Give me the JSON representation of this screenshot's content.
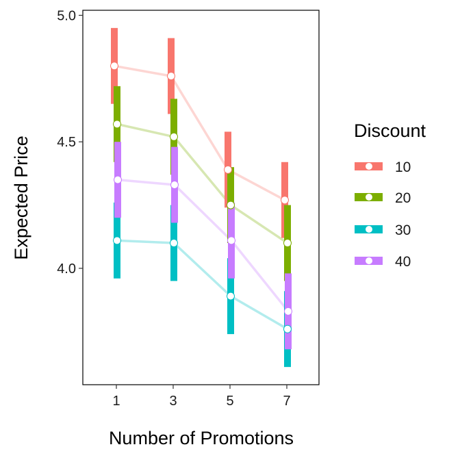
{
  "chart_data": {
    "type": "line",
    "xlabel": "Number of Promotions",
    "ylabel": "Expected Price",
    "x": [
      1,
      3,
      5,
      7
    ],
    "x_tick_labels": [
      "1",
      "3",
      "5",
      "7"
    ],
    "ylim": [
      3.54,
      5.02
    ],
    "y_ticks": [
      4.0,
      4.5,
      5.0
    ],
    "y_tick_labels": [
      "4.0",
      "4.5",
      "5.0"
    ],
    "grid": false,
    "legend": {
      "title": "Discount",
      "placement": "right"
    },
    "series": [
      {
        "name": "10",
        "color": "#F8766D",
        "values": [
          4.8,
          4.76,
          4.39,
          4.27
        ],
        "lower": [
          4.65,
          4.61,
          4.24,
          4.12
        ],
        "upper": [
          4.95,
          4.91,
          4.54,
          4.42
        ]
      },
      {
        "name": "20",
        "color": "#7CAE00",
        "values": [
          4.57,
          4.52,
          4.25,
          4.1
        ],
        "lower": [
          4.42,
          4.37,
          4.1,
          3.95
        ],
        "upper": [
          4.72,
          4.67,
          4.4,
          4.25
        ]
      },
      {
        "name": "30",
        "color": "#00BFC4",
        "values": [
          4.11,
          4.1,
          3.89,
          3.76
        ],
        "lower": [
          3.96,
          3.95,
          3.74,
          3.61
        ],
        "upper": [
          4.26,
          4.25,
          4.04,
          3.91
        ]
      },
      {
        "name": "40",
        "color": "#C77CFF",
        "values": [
          4.35,
          4.33,
          4.11,
          3.83
        ],
        "lower": [
          4.2,
          4.18,
          3.96,
          3.68
        ],
        "upper": [
          4.5,
          4.48,
          4.26,
          3.98
        ]
      }
    ]
  }
}
